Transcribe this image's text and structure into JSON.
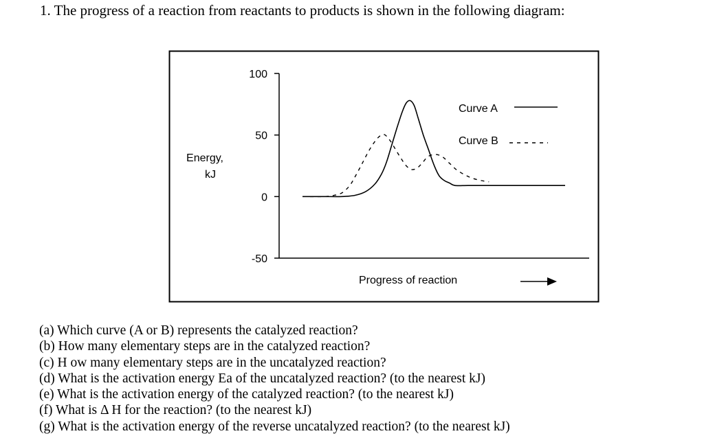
{
  "question": {
    "title": "1. The progress of a reaction from reactants to products is shown in the following diagram:"
  },
  "chart_data": {
    "type": "line",
    "ylabel_line1": "Energy,",
    "ylabel_line2": "kJ",
    "xlabel": "Progress of reaction",
    "ylim": [
      -50,
      100
    ],
    "yticks": [
      {
        "value": 100,
        "label": "100"
      },
      {
        "value": 50,
        "label": "50"
      },
      {
        "value": 0,
        "label": "0"
      },
      {
        "value": -50,
        "label": "-50"
      }
    ],
    "xlim": [
      0,
      10
    ],
    "grid": false,
    "legend_position": "top-right",
    "series": [
      {
        "name": "Curve A",
        "style": "solid",
        "points": [
          [
            0.0,
            0
          ],
          [
            0.8,
            0
          ],
          [
            1.5,
            0
          ],
          [
            2.0,
            1
          ],
          [
            2.4,
            4
          ],
          [
            2.75,
            10
          ],
          [
            3.0,
            18
          ],
          [
            3.2,
            28
          ],
          [
            3.4,
            42
          ],
          [
            3.6,
            56
          ],
          [
            3.8,
            69
          ],
          [
            3.95,
            76
          ],
          [
            4.1,
            78
          ],
          [
            4.25,
            74
          ],
          [
            4.4,
            64
          ],
          [
            4.6,
            50
          ],
          [
            4.8,
            38
          ],
          [
            5.0,
            26
          ],
          [
            5.2,
            17
          ],
          [
            5.4,
            13
          ],
          [
            5.6,
            11
          ],
          [
            5.8,
            9
          ],
          [
            6.3,
            9
          ],
          [
            7.0,
            9
          ],
          [
            8.5,
            9
          ],
          [
            10.0,
            9
          ]
        ]
      },
      {
        "name": "Curve B",
        "style": "dashed",
        "points": [
          [
            0.0,
            0
          ],
          [
            0.8,
            0
          ],
          [
            1.2,
            1
          ],
          [
            1.5,
            3
          ],
          [
            1.8,
            9
          ],
          [
            2.05,
            18
          ],
          [
            2.3,
            28
          ],
          [
            2.55,
            38
          ],
          [
            2.8,
            46
          ],
          [
            3.0,
            50
          ],
          [
            3.15,
            50
          ],
          [
            3.35,
            45
          ],
          [
            3.55,
            38
          ],
          [
            3.75,
            31
          ],
          [
            3.95,
            25
          ],
          [
            4.15,
            22
          ],
          [
            4.35,
            23
          ],
          [
            4.55,
            27
          ],
          [
            4.75,
            32
          ],
          [
            4.95,
            34
          ],
          [
            5.15,
            34
          ],
          [
            5.35,
            32
          ],
          [
            5.6,
            27
          ],
          [
            5.85,
            22
          ],
          [
            6.15,
            18
          ],
          [
            6.45,
            15
          ],
          [
            6.8,
            13
          ],
          [
            7.1,
            12
          ]
        ]
      }
    ]
  },
  "questions": [
    "(a) Which curve (A or B) represents the catalyzed reaction?",
    "(b) How many elementary steps are in the catalyzed reaction?",
    "(c) H ow many elementary steps are in the uncatalyzed reaction?",
    "(d) What is the activation energy Ea of the uncatalyzed reaction? (to the nearest kJ)",
    "(e) What is the activation energy of the catalyzed reaction? (to the nearest kJ)",
    "(f) What is Δ H for the reaction? (to the nearest kJ)",
    "(g) What is the activation energy of the reverse uncatalyzed reaction? (to the nearest kJ)"
  ]
}
